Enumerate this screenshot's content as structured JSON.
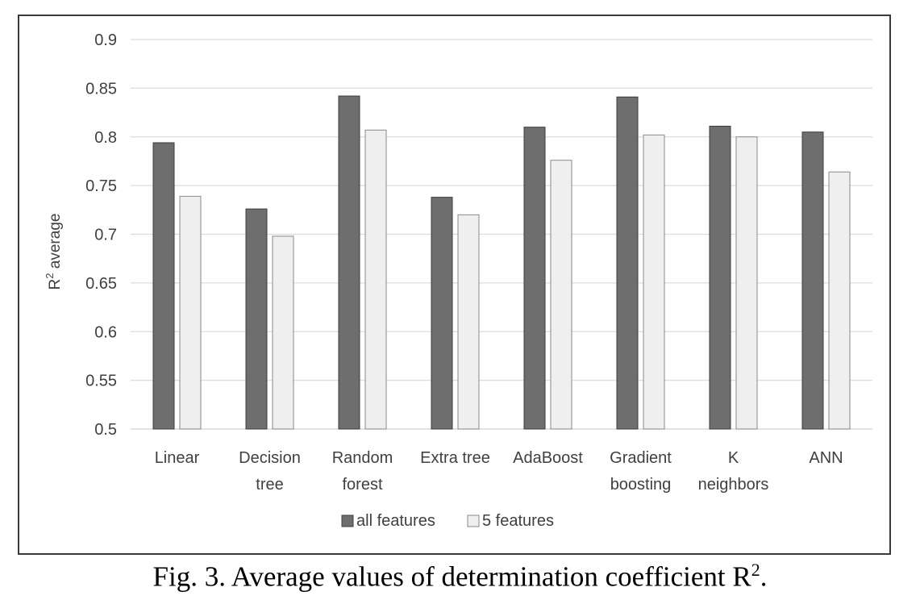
{
  "caption": {
    "prefix": "Fig. 3. Average values of determination coefficient R",
    "sup": "2",
    "suffix": "."
  },
  "chart_data": {
    "type": "bar",
    "title": "",
    "ylabel": "R",
    "ylabel_sup": "2",
    "ylabel_suffix": " average",
    "xlabel": "",
    "ylim": [
      0.5,
      0.9
    ],
    "yticks": [
      "0.5",
      "0.55",
      "0.6",
      "0.65",
      "0.7",
      "0.75",
      "0.8",
      "0.85",
      "0.9"
    ],
    "grid": true,
    "legend_position": "bottom",
    "categories": [
      [
        "Linear"
      ],
      [
        "Decision",
        "tree"
      ],
      [
        "Random",
        "forest"
      ],
      [
        "Extra tree"
      ],
      [
        "AdaBoost"
      ],
      [
        "Gradient",
        "boosting"
      ],
      [
        "K",
        "neighbors"
      ],
      [
        "ANN"
      ]
    ],
    "series": [
      {
        "name": "all features",
        "color": "#6e6e6e",
        "stroke": "#3c3c3c",
        "values": [
          0.794,
          0.726,
          0.842,
          0.738,
          0.81,
          0.841,
          0.811,
          0.805
        ]
      },
      {
        "name": "5 features",
        "color": "#efefef",
        "stroke": "#8a8a8a",
        "values": [
          0.739,
          0.698,
          0.807,
          0.72,
          0.776,
          0.802,
          0.8,
          0.764
        ]
      }
    ]
  }
}
